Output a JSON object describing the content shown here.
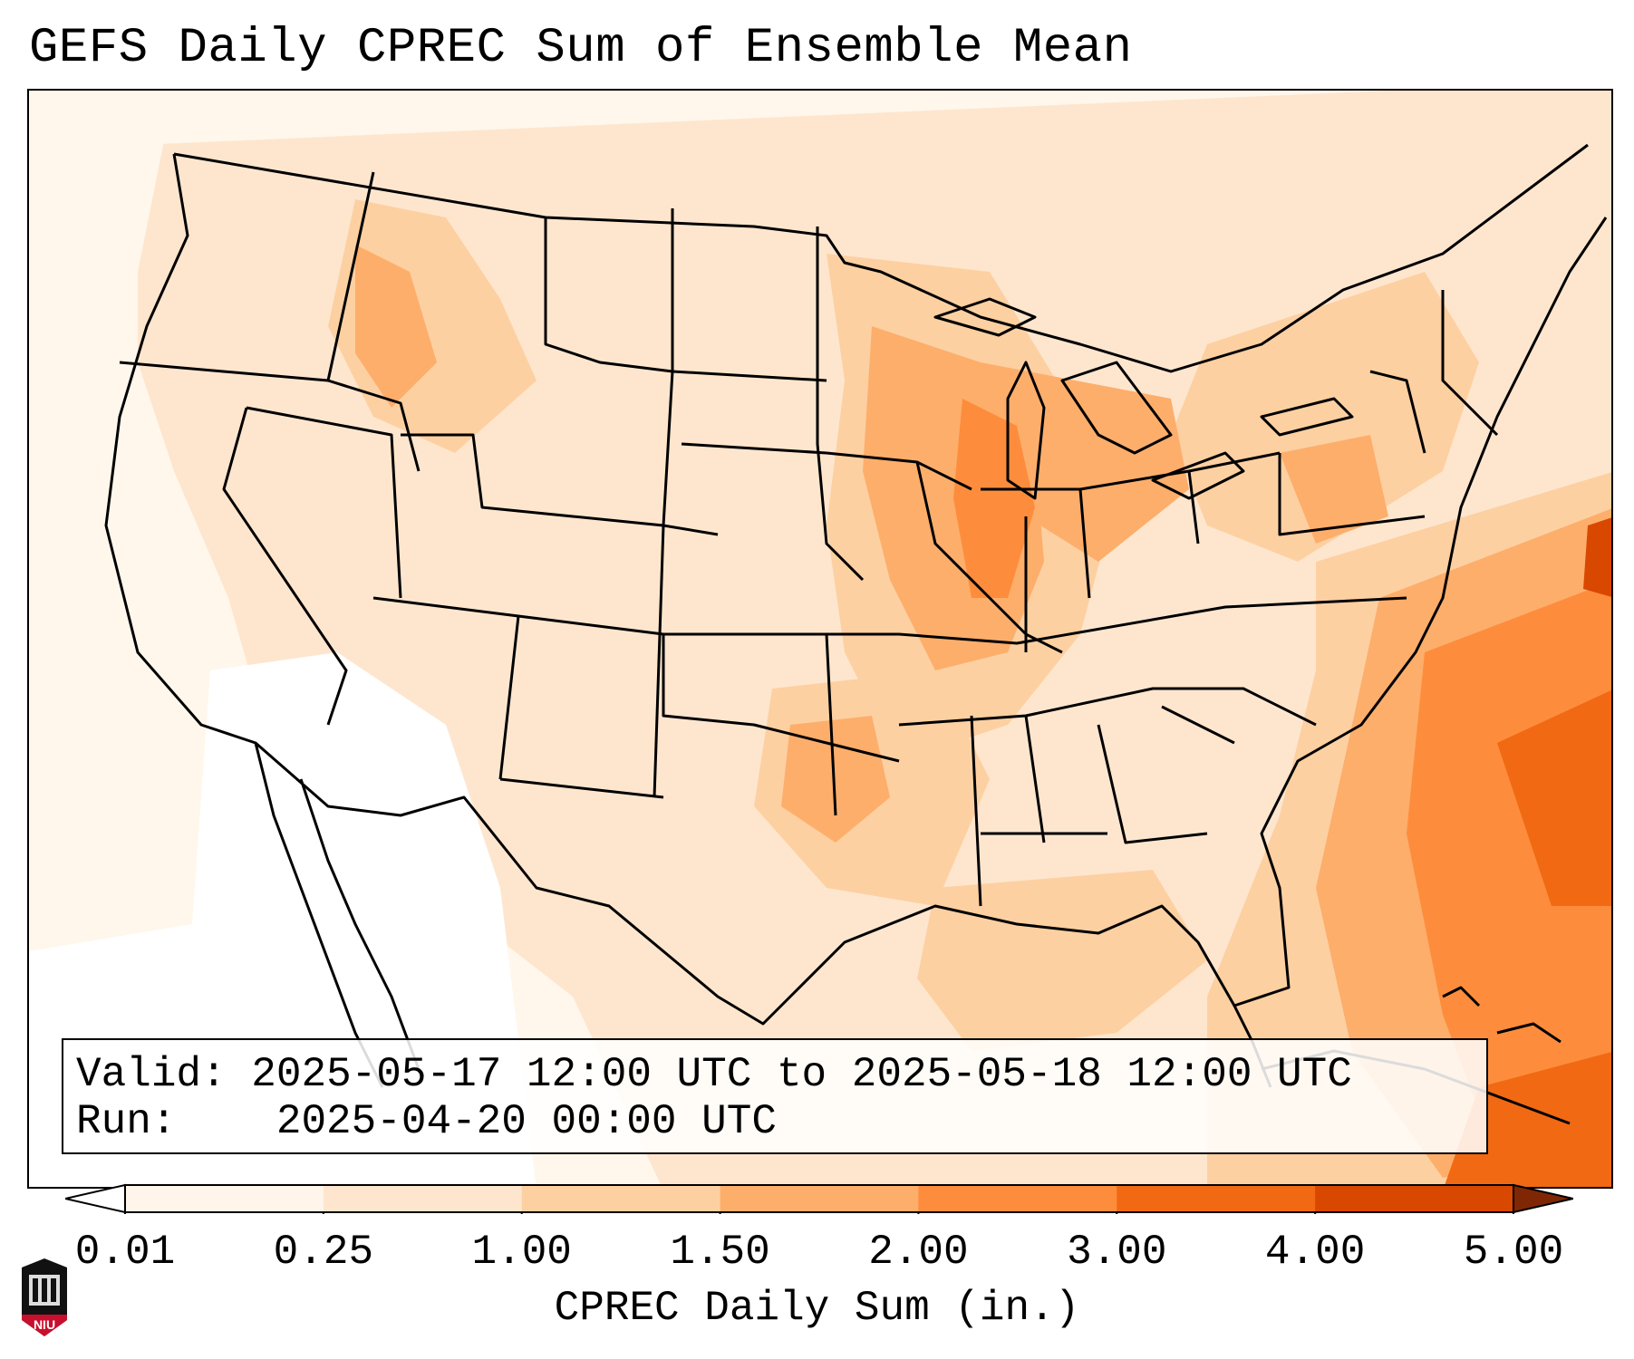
{
  "title": "GEFS Daily CPREC Sum of Ensemble Mean",
  "valid_box": {
    "valid_label": "Valid:",
    "valid_value": "2025-05-17 12:00 UTC to 2025-05-18 12:00 UTC",
    "run_label": "Run:",
    "run_value": "2025-04-20 00:00 UTC"
  },
  "colorbar": {
    "label": "CPREC Daily Sum (in.)",
    "ticks": [
      "0.01",
      "0.25",
      "1.00",
      "1.50",
      "2.00",
      "3.00",
      "4.00",
      "5.00"
    ],
    "colors": [
      "#fff5eb",
      "#fee6ce",
      "#fdd0a2",
      "#fdae6b",
      "#fd8d3c",
      "#f16913",
      "#d94801",
      "#a63603"
    ],
    "under_color": "#ffffff",
    "over_color": "#7f2704"
  },
  "logo": {
    "text": "NIU",
    "icon": "niu-logo-icon"
  }
}
